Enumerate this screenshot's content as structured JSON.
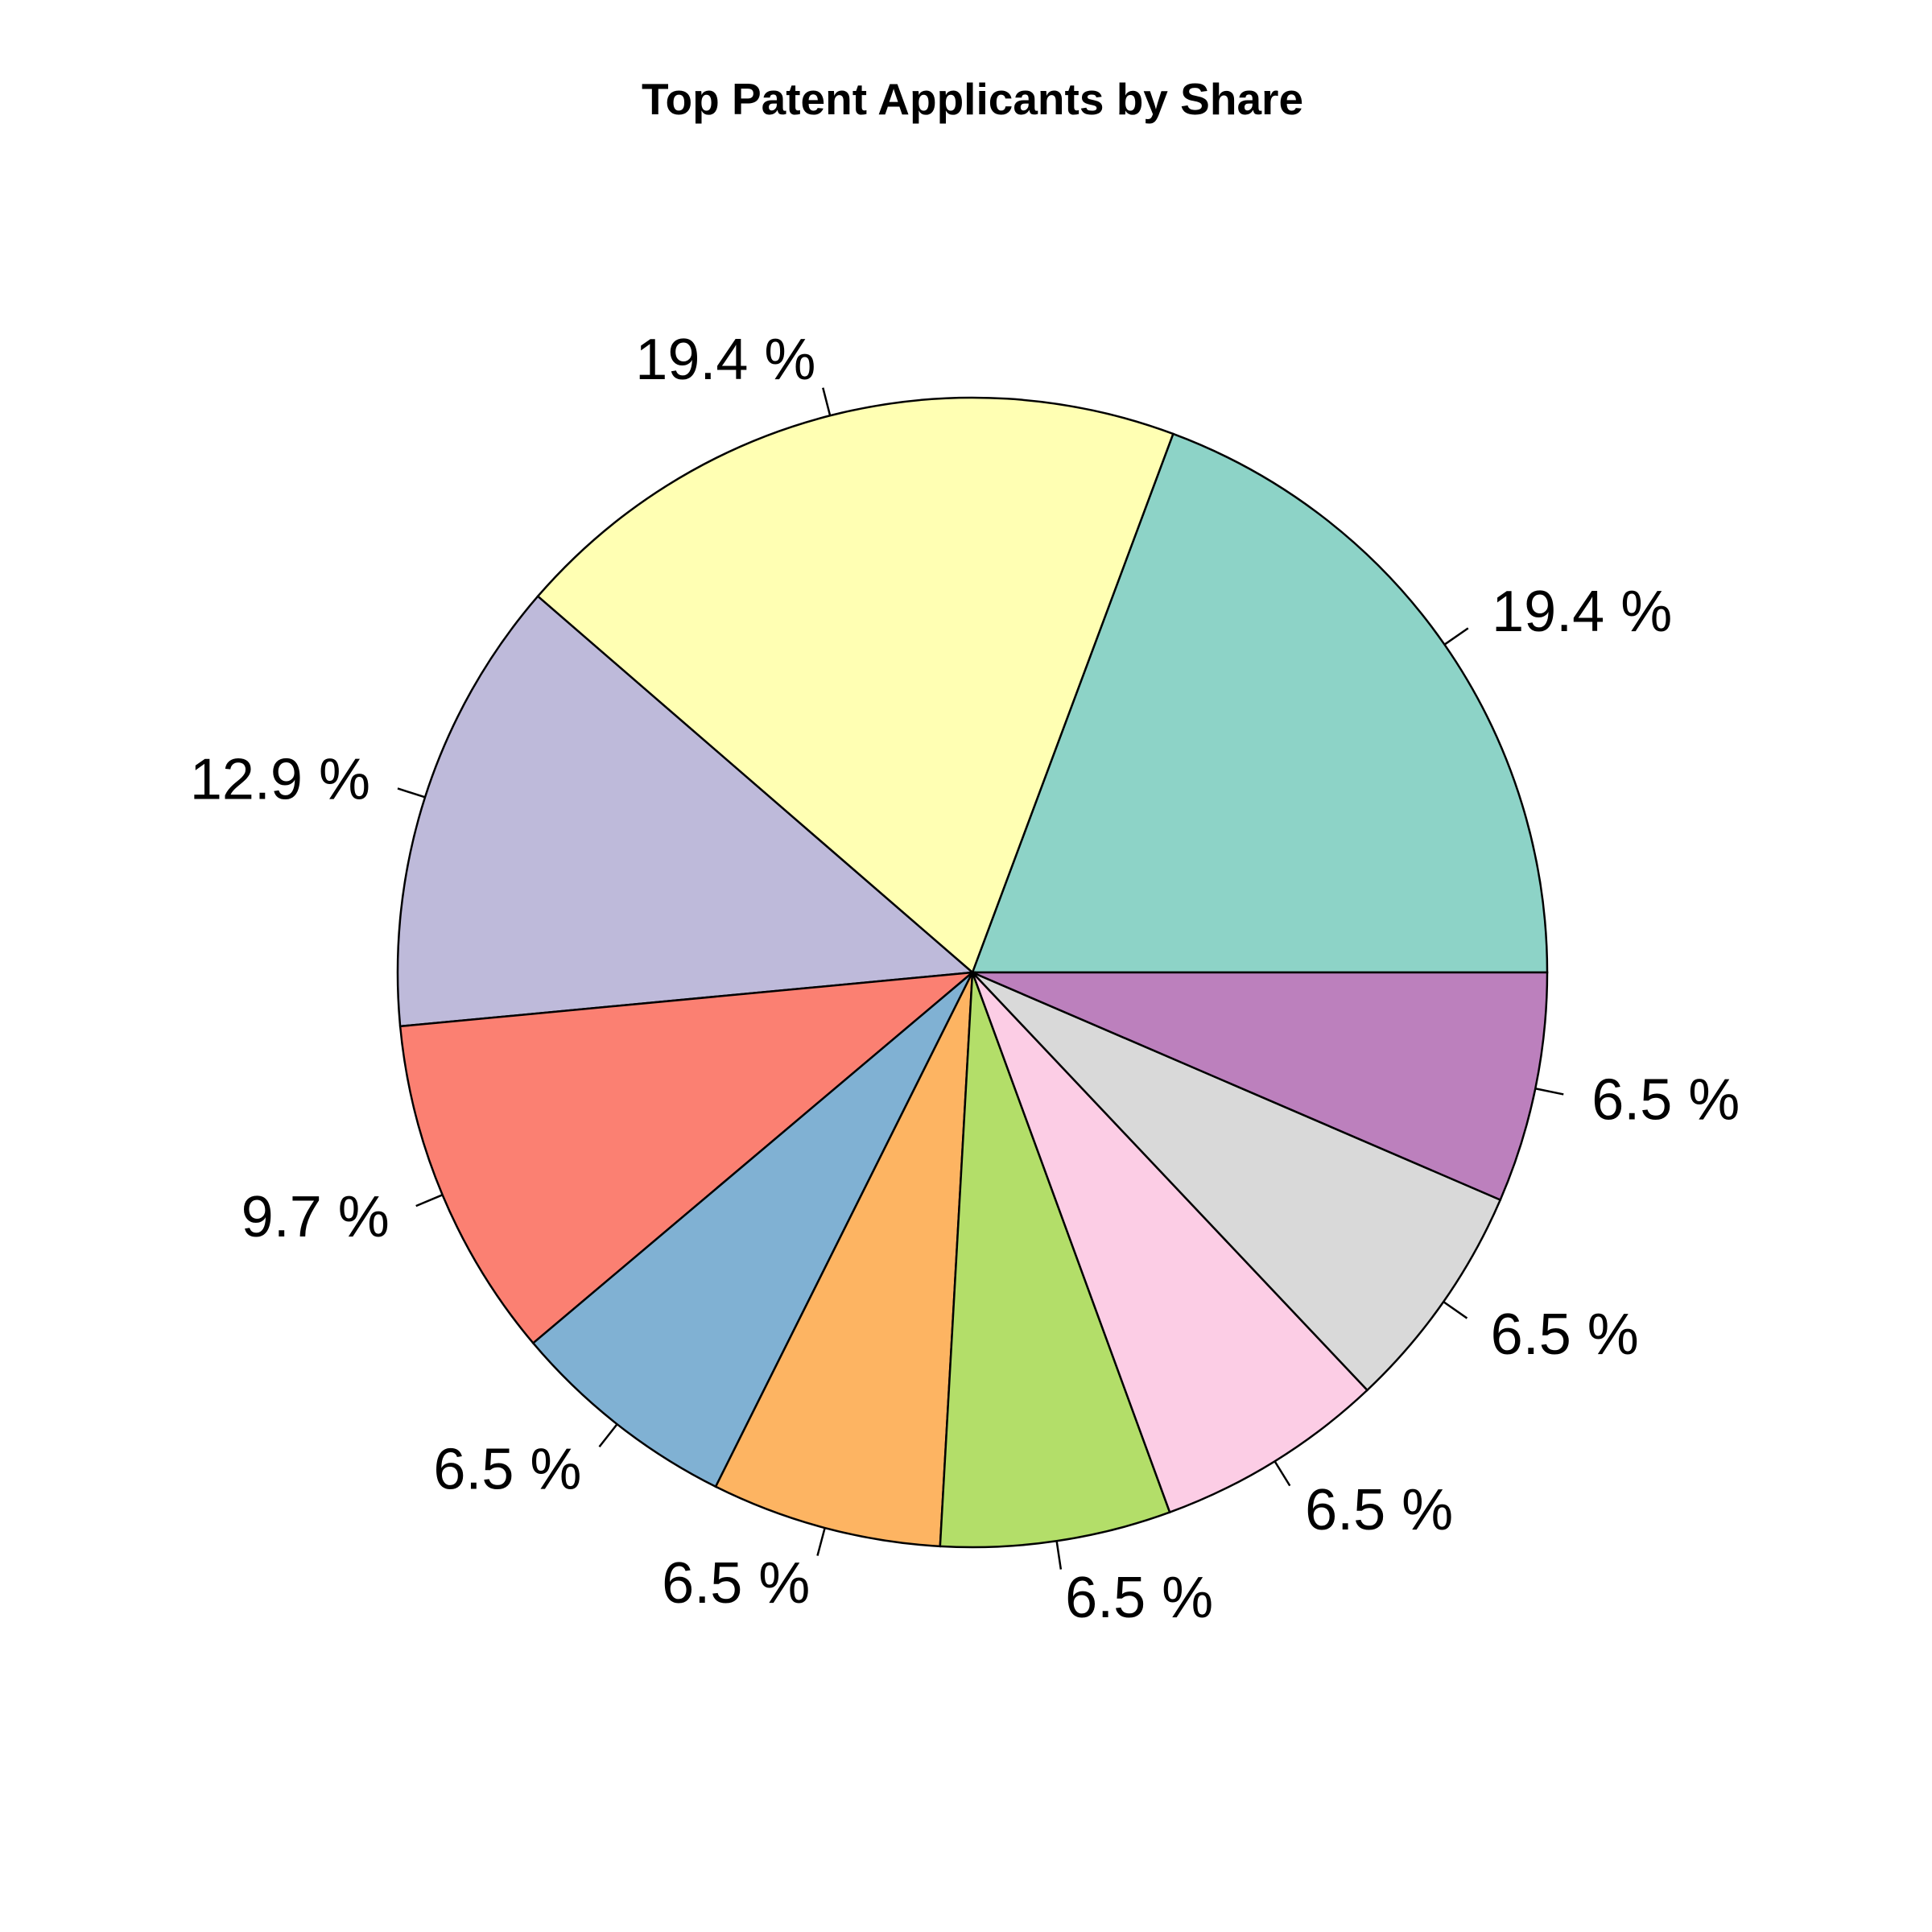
{
  "chart_data": {
    "type": "pie",
    "title": "Top Patent Applicants by Share",
    "direction": "counterclockwise",
    "start": "east",
    "slices": [
      {
        "value": 19.4,
        "label": "19.4 %",
        "color": "#8DD3C7"
      },
      {
        "value": 19.4,
        "label": "19.4 %",
        "color": "#FFFFB3"
      },
      {
        "value": 12.9,
        "label": "12.9 %",
        "color": "#BEBADA"
      },
      {
        "value": 9.7,
        "label": "9.7 %",
        "color": "#FB8072"
      },
      {
        "value": 6.5,
        "label": "6.5 %",
        "color": "#80B1D3"
      },
      {
        "value": 6.5,
        "label": "6.5 %",
        "color": "#FDB462"
      },
      {
        "value": 6.5,
        "label": "6.5 %",
        "color": "#B3DE69"
      },
      {
        "value": 6.5,
        "label": "6.5 %",
        "color": "#FCCDE5"
      },
      {
        "value": 6.5,
        "label": "6.5 %",
        "color": "#D9D9D9"
      },
      {
        "value": 6.5,
        "label": "6.5 %",
        "color": "#BC80BD"
      }
    ]
  }
}
